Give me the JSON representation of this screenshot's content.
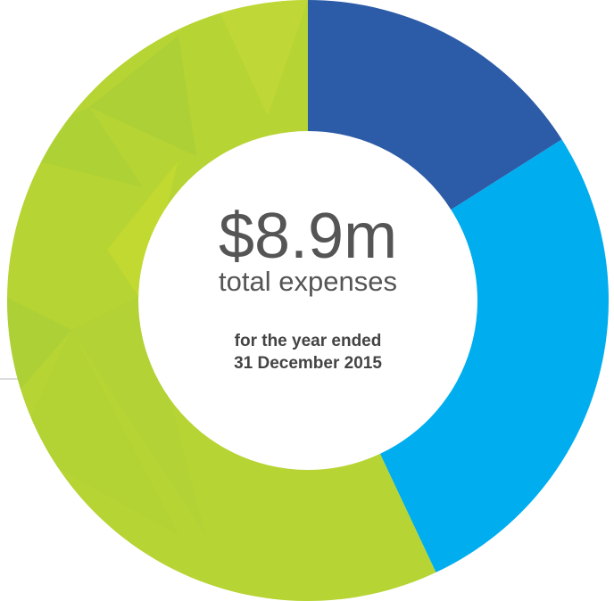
{
  "chart_data": {
    "type": "donut",
    "values": [
      16,
      27,
      57
    ],
    "colors": [
      "#2c5ba7",
      "#00adee",
      "#b6d433"
    ],
    "center_value": "$8.9m",
    "center_label": "total expenses",
    "note": [
      "for the year ended",
      "31 December 2015"
    ]
  }
}
